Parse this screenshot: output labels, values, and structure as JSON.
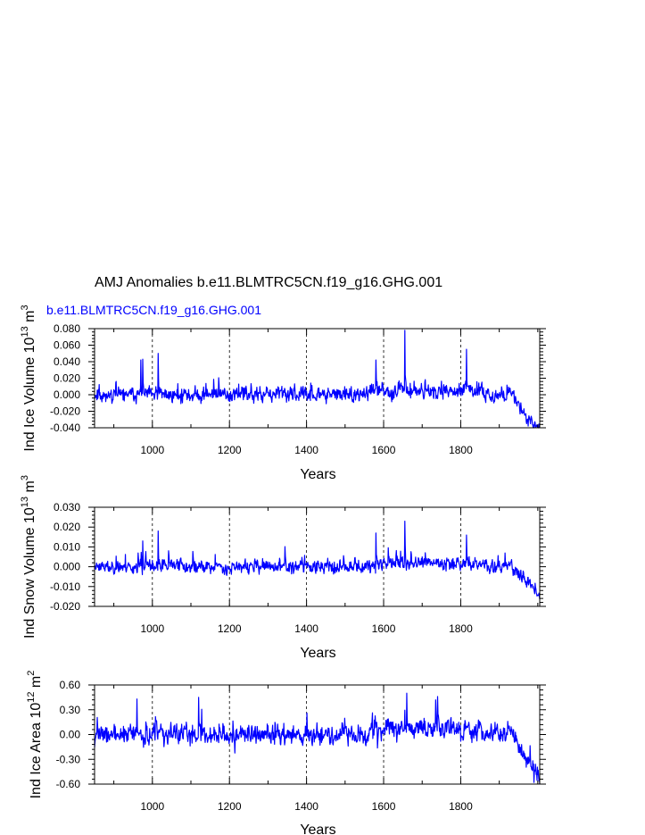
{
  "figure": {
    "title": "AMJ Anomalies b.e11.BLMTRC5CN.f19_g16.GHG.001",
    "colors": {
      "series": "#0000ff",
      "axes": "#000000",
      "background": "#ffffff"
    }
  },
  "chart_data": [
    {
      "type": "line",
      "subtitle": "b.e11.BLMTRC5CN.f19_g16.GHG.001",
      "xlabel": "Years",
      "ylabel": {
        "prefix": "Ind Ice Volume 10",
        "exp": "13",
        "unit": " m",
        "unit_exp": "3"
      },
      "xlim": [
        850,
        2005
      ],
      "ylim": [
        -0.04,
        0.08
      ],
      "xticks": [
        1000,
        1200,
        1400,
        1600,
        1800
      ],
      "xtick_labels": [
        "1000",
        "1200",
        "1400",
        "1600",
        "1800"
      ],
      "yticks": [
        -0.04,
        -0.02,
        0.0,
        0.02,
        0.04,
        0.06,
        0.08
      ],
      "ytick_labels": [
        "-0.040",
        "-0.020",
        "0.000",
        "0.020",
        "0.040",
        "0.060",
        "0.080"
      ],
      "grid": "x-dashed",
      "series": [
        {
          "x_start": 850,
          "x_end": 2005,
          "noise_amp": 0.012,
          "spike_amp": 0.022,
          "end_trend": -0.03,
          "seed": 11,
          "spikes": [
            [
              970,
              0.042
            ],
            [
              975,
              0.043
            ],
            [
              1015,
              0.05
            ],
            [
              1580,
              0.042
            ],
            [
              1655,
              0.078
            ],
            [
              1815,
              0.055
            ],
            [
              1975,
              -0.038
            ]
          ]
        }
      ]
    },
    {
      "type": "line",
      "xlabel": "Years",
      "ylabel": {
        "prefix": "Ind Snow Volume 10",
        "exp": "13",
        "unit": " m",
        "unit_exp": "3"
      },
      "xlim": [
        850,
        2005
      ],
      "ylim": [
        -0.02,
        0.03
      ],
      "xticks": [
        1000,
        1200,
        1400,
        1600,
        1800
      ],
      "xtick_labels": [
        "1000",
        "1200",
        "1400",
        "1600",
        "1800"
      ],
      "yticks": [
        -0.02,
        -0.01,
        0.0,
        0.01,
        0.02,
        0.03
      ],
      "ytick_labels": [
        "-0.020",
        "-0.010",
        "0.000",
        "0.010",
        "0.020",
        "0.030"
      ],
      "grid": "x-dashed",
      "series": [
        {
          "x_start": 850,
          "x_end": 2005,
          "noise_amp": 0.0045,
          "spike_amp": 0.008,
          "end_trend": -0.009,
          "seed": 23,
          "spikes": [
            [
              975,
              0.013
            ],
            [
              1015,
              0.018
            ],
            [
              1580,
              0.017
            ],
            [
              1655,
              0.023
            ],
            [
              1815,
              0.016
            ],
            [
              1985,
              -0.009
            ]
          ]
        }
      ]
    },
    {
      "type": "line",
      "xlabel": "Years",
      "ylabel": {
        "prefix": "Ind Ice Area 10",
        "exp": "12",
        "unit": " m",
        "unit_exp": "2"
      },
      "xlim": [
        850,
        2005
      ],
      "ylim": [
        -0.6,
        0.6
      ],
      "xticks": [
        1000,
        1200,
        1400,
        1600,
        1800
      ],
      "xtick_labels": [
        "1000",
        "1200",
        "1400",
        "1600",
        "1800"
      ],
      "yticks": [
        -0.6,
        -0.3,
        0.0,
        0.3,
        0.6
      ],
      "ytick_labels": [
        "-0.60",
        "-0.30",
        "0.00",
        "0.30",
        "0.60"
      ],
      "grid": "x-dashed",
      "series": [
        {
          "x_start": 850,
          "x_end": 2005,
          "noise_amp": 0.16,
          "spike_amp": 0.25,
          "end_trend": -0.35,
          "seed": 37,
          "spikes": [
            [
              960,
              0.43
            ],
            [
              1120,
              0.45
            ],
            [
              1660,
              0.5
            ],
            [
              1740,
              0.46
            ],
            [
              1990,
              -0.58
            ]
          ]
        }
      ]
    }
  ]
}
